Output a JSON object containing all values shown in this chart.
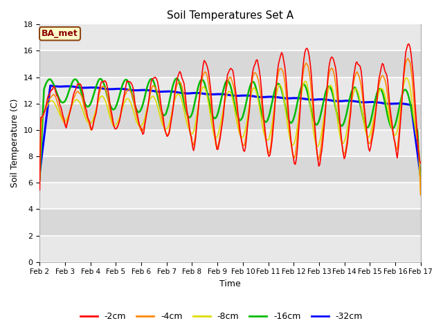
{
  "title": "Soil Temperatures Set A",
  "xlabel": "Time",
  "ylabel": "Soil Temperature (C)",
  "ylim": [
    0,
    18
  ],
  "yticks": [
    0,
    2,
    4,
    6,
    8,
    10,
    12,
    14,
    16,
    18
  ],
  "xtick_labels": [
    "Feb 2",
    "Feb 3",
    "Feb 4",
    "Feb 5",
    "Feb 6",
    "Feb 7",
    "Feb 8",
    "Feb 9",
    "Feb 10",
    "Feb 11",
    "Feb 12",
    "Feb 13",
    "Feb 14",
    "Feb 15",
    "Feb 16",
    "Feb 17"
  ],
  "series_colors": {
    "-2cm": "#ff0000",
    "-4cm": "#ff8800",
    "-8cm": "#dddd00",
    "-16cm": "#00bb00",
    "-32cm": "#0000ff"
  },
  "series_lw": {
    "-2cm": 1.2,
    "-4cm": 1.2,
    "-8cm": 1.2,
    "-16cm": 1.8,
    "-32cm": 2.2
  },
  "fig_bg_color": "#ffffff",
  "plot_bg_light": "#e8e8e8",
  "plot_bg_dark": "#d8d8d8",
  "grid_color": "#ffffff",
  "annotation_text": "BA_met",
  "annotation_color": "#8b0000",
  "annotation_bg": "#ffffcc",
  "annotation_border": "#8b4513"
}
